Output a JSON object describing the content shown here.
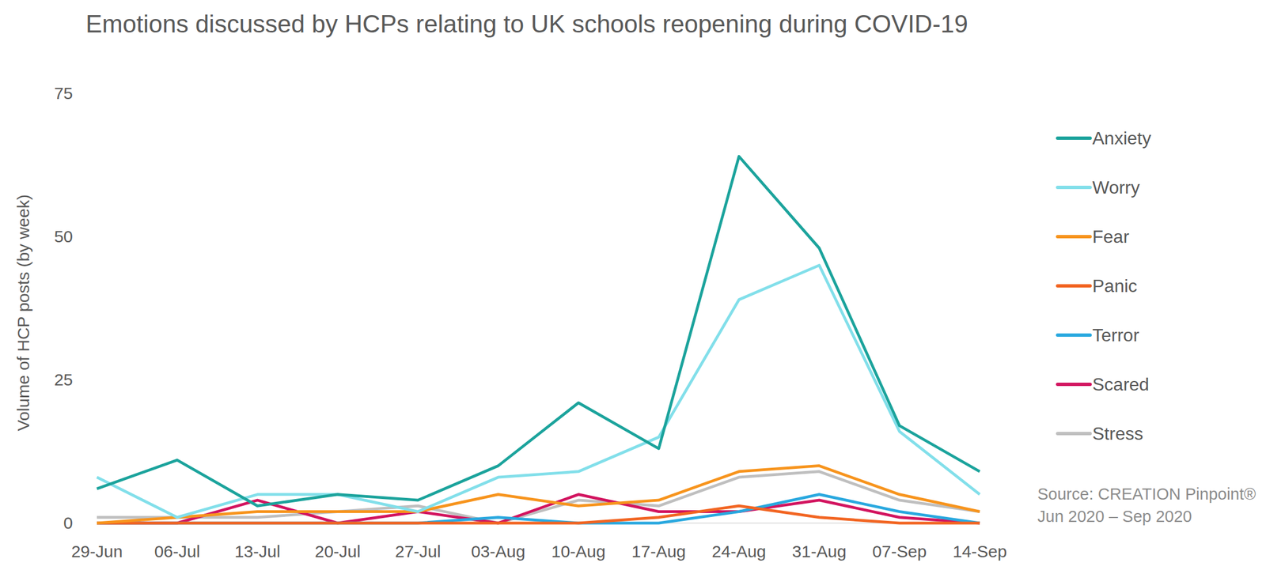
{
  "chart_data": {
    "type": "line",
    "title": "Emotions discussed by HCPs relating to UK schools reopening during COVID-19",
    "y_label": "Volume of HCP posts (by week)",
    "annotations": [
      "Source: CREATION Pinpoint®",
      "Jun 2020 – Sep 2020"
    ],
    "categories": [
      "29-Jun",
      "06-Jul",
      "13-Jul",
      "20-Jul",
      "27-Jul",
      "03-Aug",
      "10-Aug",
      "17-Aug",
      "24-Aug",
      "31-Aug",
      "07-Sep",
      "14-Sep"
    ],
    "series": [
      {
        "name": "Anxiety",
        "color": "#1ba39c",
        "values": [
          6,
          11,
          3,
          5,
          4,
          10,
          21,
          13,
          64,
          48,
          17,
          9
        ]
      },
      {
        "name": "Worry",
        "color": "#82dfea",
        "values": [
          8,
          1,
          5,
          5,
          2,
          8,
          9,
          15,
          39,
          45,
          16,
          5
        ]
      },
      {
        "name": "Fear",
        "color": "#f7941d",
        "values": [
          0,
          1,
          2,
          2,
          2,
          5,
          3,
          4,
          9,
          10,
          5,
          2
        ]
      },
      {
        "name": "Panic",
        "color": "#f26522",
        "values": [
          0,
          0,
          0,
          0,
          0,
          0,
          0,
          1,
          3,
          1,
          0,
          0
        ]
      },
      {
        "name": "Terror",
        "color": "#29a8df",
        "values": [
          0,
          0,
          0,
          0,
          0,
          1,
          0,
          0,
          2,
          5,
          2,
          0
        ]
      },
      {
        "name": "Scared",
        "color": "#d2145f",
        "values": [
          0,
          0,
          4,
          0,
          2,
          0,
          5,
          2,
          2,
          4,
          1,
          0
        ]
      },
      {
        "name": "Stress",
        "color": "#bfbfbf",
        "values": [
          1,
          1,
          1,
          2,
          3,
          0,
          4,
          3,
          8,
          9,
          4,
          2
        ]
      }
    ],
    "ylim": [
      0,
      75
    ],
    "yticks": [
      0,
      25,
      50,
      75
    ],
    "grid": false,
    "legend": "right"
  }
}
